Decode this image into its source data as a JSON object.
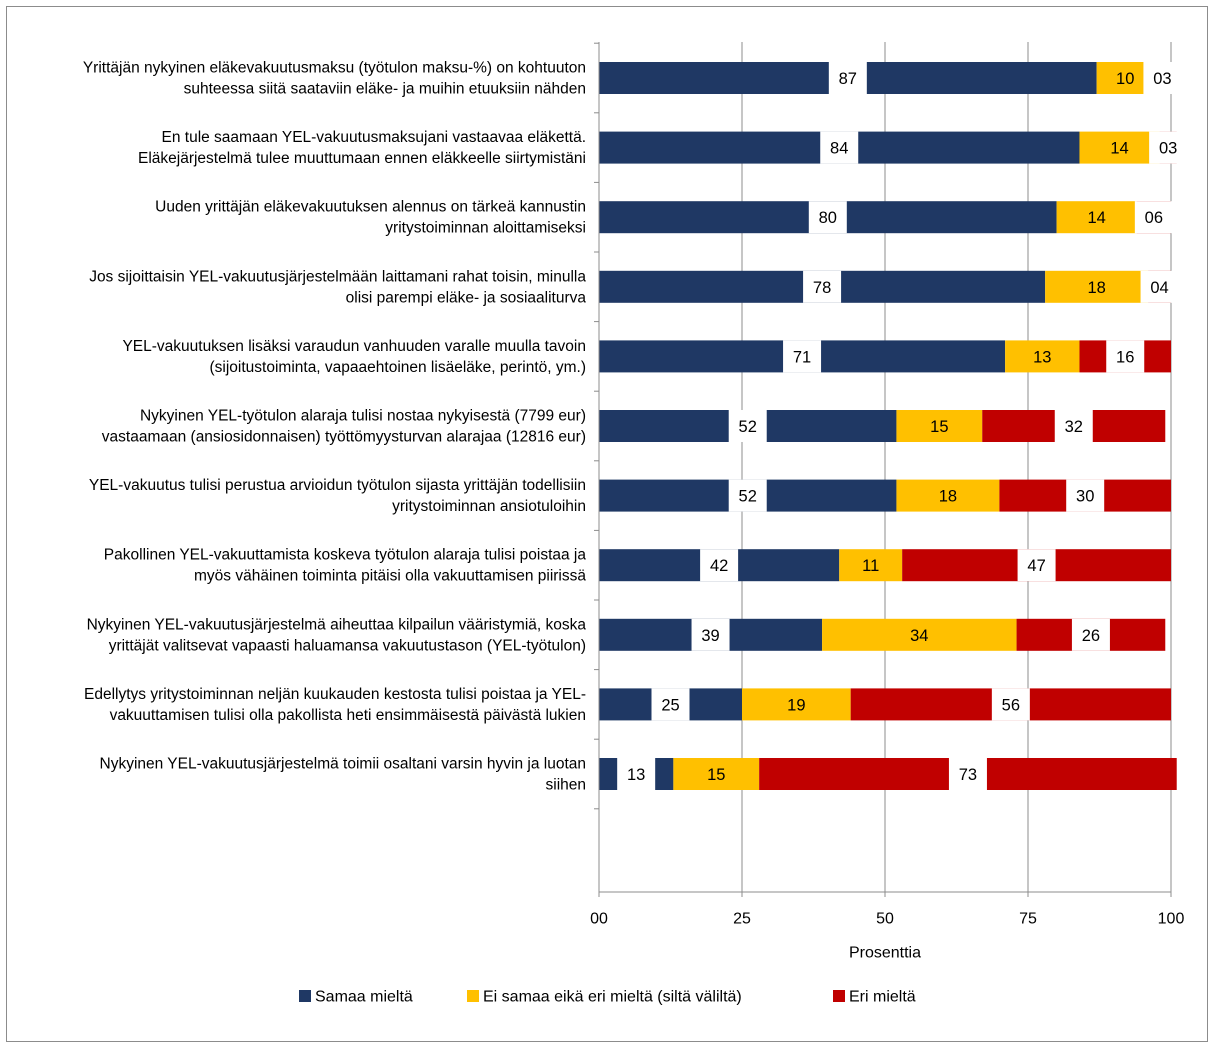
{
  "chart_data": {
    "type": "bar",
    "orientation": "horizontal",
    "stacked": true,
    "xlabel": "Prosenttia",
    "xticks": [
      "00",
      "25",
      "50",
      "75",
      "100"
    ],
    "xlim": [
      0,
      100
    ],
    "legend_position": "bottom",
    "grid": true,
    "categories": [
      [
        "Yrittäjän nykyinen eläkevakuutusmaksu (työtulon maksu-%) on kohtuuton",
        "suhteessa siitä saataviin eläke- ja muihin etuuksiin nähden"
      ],
      [
        "En tule saamaan YEL-vakuutusmaksujani vastaavaa eläkettä.",
        "Eläkejärjestelmä tulee muuttumaan ennen eläkkeelle siirtymistäni"
      ],
      [
        "Uuden yrittäjän eläkevakuutuksen alennus on tärkeä kannustin",
        "yritystoiminnan aloittamiseksi"
      ],
      [
        "Jos sijoittaisin YEL-vakuutusjärjestelmään laittamani rahat toisin, minulla",
        "olisi parempi eläke- ja sosiaaliturva"
      ],
      [
        "YEL-vakuutuksen lisäksi varaudun vanhuuden varalle muulla tavoin",
        "(sijoitustoiminta, vapaaehtoinen lisäeläke, perintö, ym.)"
      ],
      [
        "Nykyinen YEL-työtulon alaraja tulisi nostaa nykyisestä (7799 eur)",
        "vastaamaan (ansiosidonnaisen) työttömyysturvan alarajaa (12816 eur)"
      ],
      [
        "YEL-vakuutus tulisi perustua arvioidun työtulon sijasta yrittäjän todellisiin",
        "yritystoiminnan ansiotuloihin"
      ],
      [
        "Pakollinen YEL-vakuuttamista koskeva työtulon alaraja tulisi poistaa ja",
        "myös vähäinen toiminta pitäisi olla vakuuttamisen piirissä"
      ],
      [
        "Nykyinen YEL-vakuutusjärjestelmä aiheuttaa kilpailun vääristymiä, koska",
        "yrittäjät valitsevat vapaasti haluamansa vakuutustason (YEL-työtulon)"
      ],
      [
        "Edellytys yritystoiminnan neljän kuukauden kestosta tulisi poistaa ja YEL-",
        "vakuuttamisen tulisi olla pakollista heti ensimmäisestä päivästä lukien"
      ],
      [
        "Nykyinen YEL-vakuutusjärjestelmä toimii osaltani varsin hyvin ja luotan",
        "siihen"
      ]
    ],
    "series": [
      {
        "name": "Samaa mieltä",
        "color": "#1f3864",
        "values": [
          87,
          84,
          80,
          78,
          71,
          52,
          52,
          42,
          39,
          25,
          13
        ],
        "labels": [
          "87",
          "84",
          "80",
          "78",
          "71",
          "52",
          "52",
          "42",
          "39",
          "25",
          "13"
        ]
      },
      {
        "name": "Ei samaa eikä eri mieltä (siltä väliltä)",
        "color": "#ffc000",
        "values": [
          10,
          14,
          14,
          18,
          13,
          15,
          18,
          11,
          34,
          19,
          15
        ],
        "labels": [
          "10",
          "14",
          "14",
          "18",
          "13",
          "15",
          "18",
          "11",
          "34",
          "19",
          "15"
        ]
      },
      {
        "name": "Eri mieltä",
        "color": "#c00000",
        "values": [
          3,
          3,
          6,
          4,
          16,
          32,
          30,
          47,
          26,
          56,
          73
        ],
        "labels": [
          "03",
          "03",
          "06",
          "04",
          "16",
          "32",
          "30",
          "47",
          "26",
          "56",
          "73"
        ]
      }
    ]
  }
}
